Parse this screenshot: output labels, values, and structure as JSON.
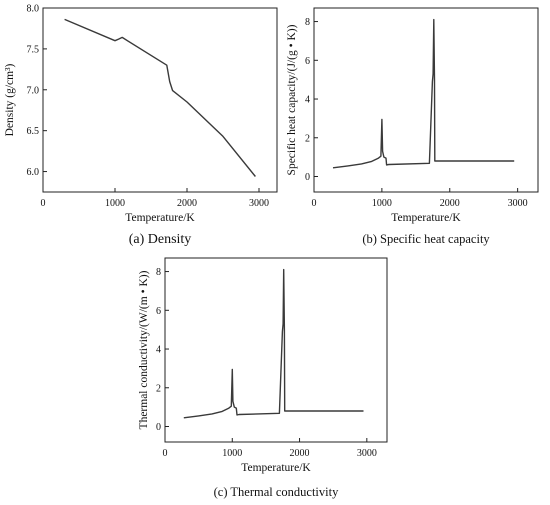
{
  "chart_data": [
    {
      "type": "line",
      "caption": "(a) Density",
      "xlabel": "Temperature/K",
      "ylabel": "Density (g/cm³)",
      "xlim": [
        0,
        3250
      ],
      "ylim": [
        5.75,
        8.0
      ],
      "xticks": [
        0,
        1000,
        2000,
        3000
      ],
      "yticks": [
        6.0,
        6.5,
        7.0,
        7.5,
        8.0
      ],
      "ytick_labels": [
        "6.0",
        "6.5",
        "7.0",
        "7.5",
        "8.0"
      ],
      "series": [
        {
          "x": [
            300,
            1000,
            1050,
            1100,
            1720,
            1760,
            1800,
            2000,
            2500,
            2950
          ],
          "y": [
            7.86,
            7.6,
            7.62,
            7.64,
            7.3,
            7.1,
            6.99,
            6.85,
            6.43,
            5.94
          ]
        }
      ]
    },
    {
      "type": "line",
      "caption": "(b) Specific heat capacity",
      "xlabel": "Temperature/K",
      "ylabel": "Specific heat capacity/(J/(g • K))",
      "xlim": [
        0,
        3300
      ],
      "ylim": [
        -0.8,
        8.7
      ],
      "xticks": [
        0,
        1000,
        2000,
        3000
      ],
      "yticks": [
        0,
        2,
        4,
        6,
        8
      ],
      "ytick_labels": [
        "0",
        "2",
        "4",
        "6",
        "8"
      ],
      "series": [
        {
          "x": [
            280,
            500,
            700,
            850,
            950,
            985,
            1000,
            1010,
            1030,
            1060,
            1070,
            1100,
            1700,
            1745,
            1755,
            1765,
            1775,
            1780,
            1790,
            2950
          ],
          "y": [
            0.45,
            0.55,
            0.65,
            0.78,
            0.95,
            1.05,
            2.95,
            1.3,
            1.0,
            0.95,
            0.6,
            0.62,
            0.68,
            4.9,
            5.3,
            8.1,
            5.0,
            0.8,
            0.8,
            0.8
          ]
        }
      ]
    },
    {
      "type": "line",
      "caption": "(c) Thermal conductivity",
      "xlabel": "Temperature/K",
      "ylabel": "Thermal conductivity/(W/(m • K))",
      "xlim": [
        0,
        3300
      ],
      "ylim": [
        -0.8,
        8.7
      ],
      "xticks": [
        0,
        1000,
        2000,
        3000
      ],
      "yticks": [
        0,
        2,
        4,
        6,
        8
      ],
      "ytick_labels": [
        "0",
        "2",
        "4",
        "6",
        "8"
      ],
      "series": [
        {
          "x": [
            280,
            500,
            700,
            850,
            950,
            985,
            1000,
            1010,
            1030,
            1060,
            1070,
            1100,
            1700,
            1745,
            1755,
            1765,
            1775,
            1780,
            1790,
            2950
          ],
          "y": [
            0.45,
            0.55,
            0.65,
            0.78,
            0.95,
            1.05,
            2.95,
            1.3,
            1.0,
            0.95,
            0.6,
            0.62,
            0.68,
            4.9,
            5.3,
            8.1,
            5.0,
            0.8,
            0.8,
            0.8
          ]
        }
      ]
    }
  ]
}
